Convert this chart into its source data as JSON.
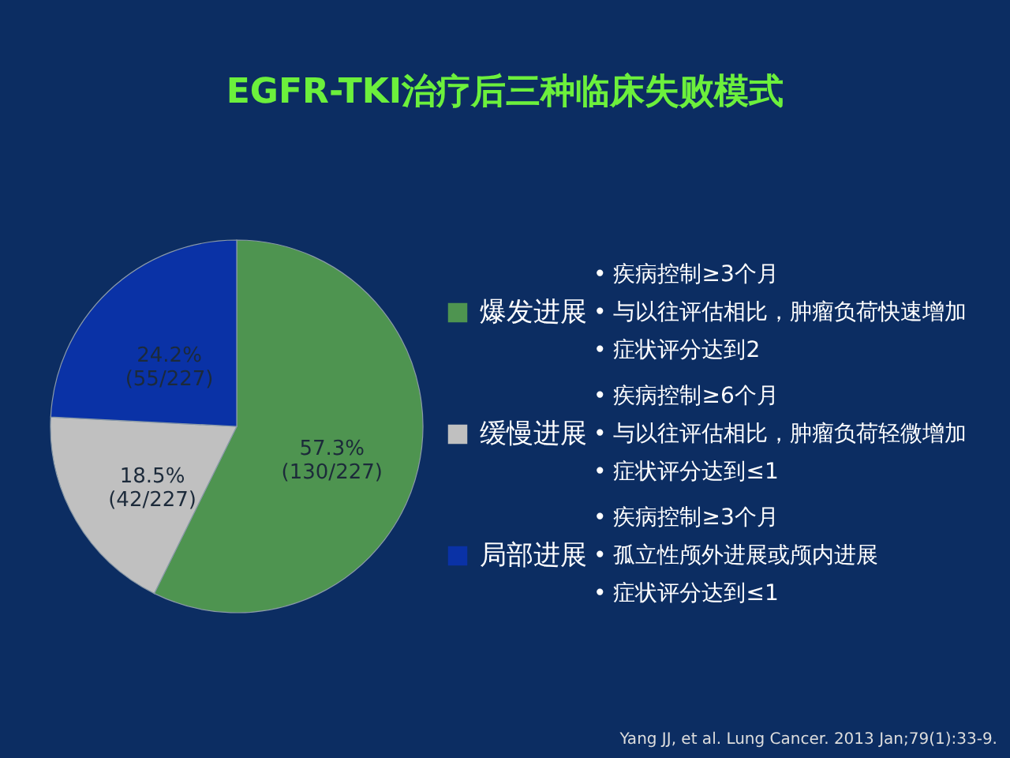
{
  "chart_data": {
    "type": "pie",
    "title": "EGFR-TKI治疗后三种临床失败模式",
    "categories": [
      "爆发进展",
      "缓慢进展",
      "局部进展"
    ],
    "values": [
      57.3,
      18.5,
      24.2
    ],
    "colors": [
      "#4e9450",
      "#c0c0c0",
      "#0a32a6"
    ],
    "value_labels": [
      "57.3%\n(130/227)",
      "18.5%\n(42/227)",
      "24.2%\n(55/227)"
    ],
    "legend": "right",
    "annotations": [
      "• 疾病控制≥3个月",
      "• 与以往评估相比，肿瘤负荷快速增加",
      "• 症状评分达到2",
      "• 疾病控制≥6个月",
      "• 与以往评估相比，肿瘤负荷轻微增加",
      "• 症状评分达到≤1",
      "• 疾病控制≥3个月",
      "• 孤立性颅外进展或颅内进展",
      "• 症状评分达到≤1",
      "Yang JJ, et al. Lung Cancer. 2013 Jan;79(1):33-9."
    ]
  }
}
